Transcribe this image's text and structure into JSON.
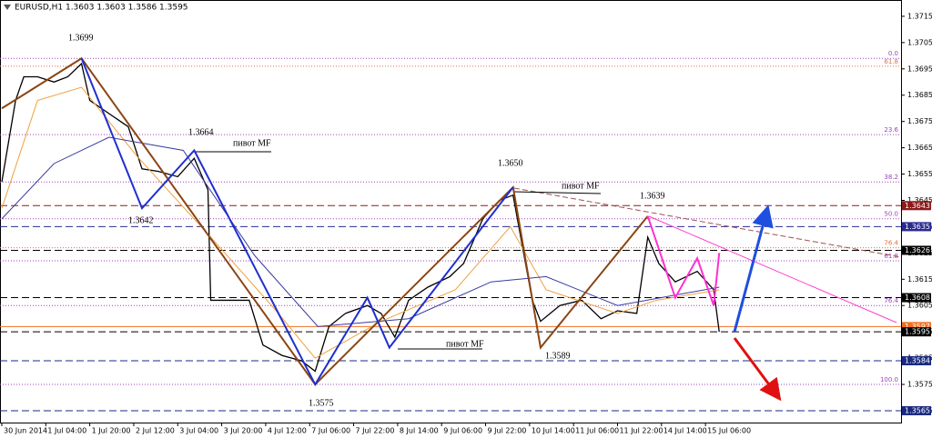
{
  "chart_data": {
    "type": "line",
    "title": "EURUSD,H1  1.3603 1.3603 1.3586 1.3595",
    "ylim": [
      1.35605,
      1.37212
    ],
    "xlim": [
      -0.66,
      327.15
    ],
    "yticks": [
      1.3565,
      1.3575,
      1.3585,
      1.3595,
      1.3605,
      1.3615,
      1.3625,
      1.3635,
      1.3645,
      1.3655,
      1.3665,
      1.3675,
      1.3685,
      1.3695,
      1.3705,
      1.3715
    ],
    "xticks": [
      {
        "value": 0,
        "label": "30 Jun 2014"
      },
      {
        "value": 16,
        "label": "1 Jul 04:00"
      },
      {
        "value": 32,
        "label": "1 Jul 20:00"
      },
      {
        "value": 48,
        "label": "2 Jul 12:00"
      },
      {
        "value": 64,
        "label": "3 Jul 04:00"
      },
      {
        "value": 80,
        "label": "3 Jul 20:00"
      },
      {
        "value": 96,
        "label": "4 Jul 12:00"
      },
      {
        "value": 112,
        "label": "7 Jul 06:00"
      },
      {
        "value": 128,
        "label": "7 Jul 22:00"
      },
      {
        "value": 144,
        "label": "8 Jul 14:00"
      },
      {
        "value": 160,
        "label": "9 Jul 06:00"
      },
      {
        "value": 176,
        "label": "9 Jul 22:00"
      },
      {
        "value": 192,
        "label": "10 Jul 14:00"
      },
      {
        "value": 208,
        "label": "11 Jul 06:00"
      },
      {
        "value": 224,
        "label": "11 Jul 22:00"
      },
      {
        "value": 240,
        "label": "14 Jul 14:00"
      },
      {
        "value": 256,
        "label": "15 Jul 06:00"
      }
    ],
    "lines": [
      {
        "color": "#000000",
        "width": 1.3,
        "x": [
          0,
          5,
          8,
          13,
          19,
          24,
          29,
          32,
          39,
          46,
          51,
          57,
          64,
          70,
          75,
          76,
          82,
          90,
          95,
          102,
          109,
          114,
          119,
          125,
          133,
          138,
          143,
          148,
          155,
          163,
          168,
          175,
          181,
          186,
          190,
          193,
          196,
          203,
          211,
          218,
          224,
          231,
          235,
          239,
          245,
          253,
          259,
          261
        ],
        "values": [
          1.3652,
          1.3683,
          1.3692,
          1.3692,
          1.369,
          1.3692,
          1.3697,
          1.3683,
          1.3678,
          1.3673,
          1.3657,
          1.3656,
          1.3654,
          1.3661,
          1.3649,
          1.3607,
          1.3607,
          1.3607,
          1.359,
          1.3586,
          1.3584,
          1.358,
          1.3597,
          1.3602,
          1.3605,
          1.3602,
          1.3593,
          1.3607,
          1.3612,
          1.3616,
          1.3621,
          1.3638,
          1.3645,
          1.3647,
          1.3624,
          1.3607,
          1.3599,
          1.3605,
          1.3607,
          1.36,
          1.3603,
          1.3602,
          1.3631,
          1.3621,
          1.3614,
          1.3618,
          1.3611,
          1.3595
        ]
      },
      {
        "color": "#f0a040",
        "width": 1,
        "x": [
          0,
          13,
          29,
          49,
          76,
          99,
          114,
          138,
          165,
          185,
          198,
          224,
          238,
          261
        ],
        "values": [
          1.3642,
          1.3683,
          1.3688,
          1.3662,
          1.3631,
          1.3604,
          1.3585,
          1.3599,
          1.3611,
          1.3635,
          1.3611,
          1.3602,
          1.3607,
          1.3611
        ]
      },
      {
        "color": "#3a3aa0",
        "width": 1,
        "x": [
          0,
          19,
          39,
          66,
          92,
          115,
          148,
          178,
          198,
          224,
          261
        ],
        "values": [
          1.3638,
          1.3659,
          1.3669,
          1.3664,
          1.3624,
          1.3597,
          1.36,
          1.3614,
          1.3616,
          1.3605,
          1.3612
        ]
      },
      {
        "color": "#8b4513",
        "width": 2,
        "x": [
          0,
          29,
          114,
          186,
          196,
          235
        ],
        "values": [
          1.368,
          1.3699,
          1.3575,
          1.365,
          1.3589,
          1.3639
        ]
      },
      {
        "color": "#1f2fd0",
        "width": 2,
        "x": [
          29,
          51,
          70,
          114,
          133,
          141,
          186
        ],
        "values": [
          1.3699,
          1.3642,
          1.3664,
          1.3575,
          1.3608,
          1.3589,
          1.365
        ]
      },
      {
        "color": "#ff30d0",
        "width": 2,
        "x": [
          235,
          245,
          253,
          259,
          261
        ],
        "values": [
          1.3639,
          1.3608,
          1.3623,
          1.3605,
          1.3625
        ]
      }
    ],
    "fib_levels": [
      {
        "value": 1.3699,
        "label": "0.0",
        "color": "#a040c0"
      },
      {
        "value": 1.3696,
        "label": "61.8",
        "color": "#e07040"
      },
      {
        "value": 1.367,
        "label": "23.6",
        "color": "#a040c0"
      },
      {
        "value": 1.3652,
        "label": "38.2",
        "color": "#a040c0"
      },
      {
        "value": 1.3638,
        "label": "50.0",
        "color": "#a040c0"
      },
      {
        "value": 1.3627,
        "label": "76.4",
        "color": "#e07040"
      },
      {
        "value": 1.3622,
        "label": "61.8",
        "color": "#a040c0"
      },
      {
        "value": 1.3605,
        "label": "76.4",
        "color": "#a040c0"
      },
      {
        "value": 1.3575,
        "label": "100.0",
        "color": "#a040c0"
      }
    ],
    "price_tags": [
      {
        "value": 1.3643,
        "color": "#8b1a1a"
      },
      {
        "value": 1.3635,
        "color": "#2a2a90"
      },
      {
        "value": 1.3626,
        "color": "#000000"
      },
      {
        "value": 1.3608,
        "color": "#000000"
      },
      {
        "value": 1.3597,
        "color": "#f07020"
      },
      {
        "value": 1.3595,
        "color": "#000000"
      },
      {
        "value": 1.3584,
        "color": "#1a2a80"
      },
      {
        "value": 1.3565,
        "color": "#1a2a80"
      }
    ],
    "annotations": [
      "1.3699",
      "1.3664",
      "1.3642",
      "1.3650",
      "1.3639",
      "1.3589",
      "1.3575",
      "пивот MF",
      "пивот MF",
      "пивот MF"
    ]
  }
}
